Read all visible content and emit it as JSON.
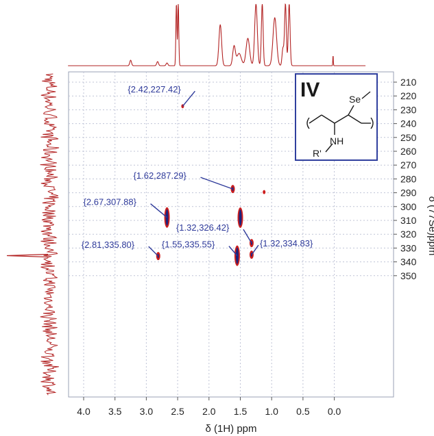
{
  "chart_data": {
    "type": "scatter",
    "subtype": "2D NMR correlation (1H–77Se HMBC)",
    "xlabel": "δ (1H) ppm",
    "ylabel": "δ (77Se)ppm",
    "xlim": [
      4.25,
      -0.5
    ],
    "ylim": [
      355,
      205
    ],
    "x_ticks": [
      "4.0",
      "3.5",
      "3.0",
      "2.5",
      "2.0",
      "1.5",
      "1.0",
      "0.5",
      "0.0"
    ],
    "y_ticks": [
      "210",
      "220",
      "230",
      "240",
      "250",
      "260",
      "270",
      "280",
      "290",
      "300",
      "310",
      "320",
      "330",
      "340",
      "350"
    ],
    "grid": true,
    "peaks": [
      {
        "x": 2.42,
        "y": 227.42,
        "label": "{2.42,227.42}",
        "intensity": "weak"
      },
      {
        "x": 1.62,
        "y": 287.29,
        "label": "{1.62,287.29}",
        "intensity": "medium"
      },
      {
        "x": 1.12,
        "y": 289.5,
        "label": "",
        "intensity": "weak"
      },
      {
        "x": 2.67,
        "y": 307.88,
        "label": "{2.67,307.88}",
        "intensity": "strong"
      },
      {
        "x": 1.5,
        "y": 308.0,
        "label": "",
        "intensity": "strong"
      },
      {
        "x": 1.32,
        "y": 326.42,
        "label": "{1.32,326.42}",
        "intensity": "medium"
      },
      {
        "x": 2.81,
        "y": 335.8,
        "label": "{2.81,335.80}",
        "intensity": "medium"
      },
      {
        "x": 1.55,
        "y": 335.55,
        "label": "{1.55,335.55}",
        "intensity": "strong"
      },
      {
        "x": 1.32,
        "y": 334.83,
        "label": "{1.32,334.83}",
        "intensity": "medium"
      }
    ],
    "projections": {
      "top": "1H spectrum",
      "left": "77Se spectrum"
    },
    "colors": {
      "peak": "#cc1f1f",
      "peak_core": "#1a237e",
      "projection": "#b22222",
      "label": "#2e3a9a",
      "grid": "#bfc3d6",
      "inset_border": "#2f3f9e"
    }
  },
  "inset": {
    "title": "IV",
    "atoms": {
      "se": "Se",
      "nh": "NH",
      "r": "R'"
    }
  }
}
